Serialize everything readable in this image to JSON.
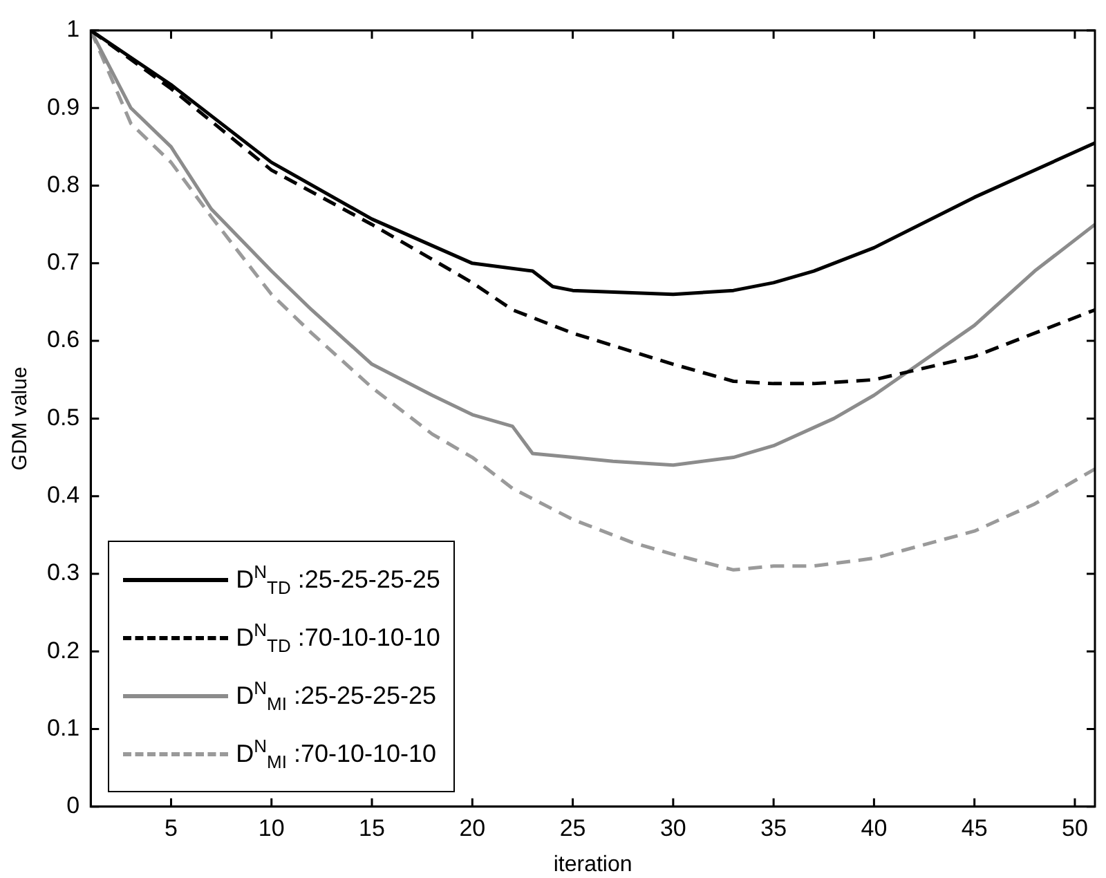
{
  "chart_data": {
    "type": "line",
    "xlabel": "iteration",
    "ylabel": "GDM value",
    "xlim": [
      1,
      51
    ],
    "ylim": [
      0,
      1
    ],
    "xticks": [
      5,
      10,
      15,
      20,
      25,
      30,
      35,
      40,
      45,
      50
    ],
    "yticks": [
      0,
      0.1,
      0.2,
      0.3,
      0.4,
      0.5,
      0.6,
      0.7,
      0.8,
      0.9,
      1
    ],
    "grid": false,
    "legend": "bottom left",
    "marker": "none",
    "series": [
      {
        "name": "D$^{N}$$_{TD}$ :25-25-25-25",
        "color": "#000000",
        "line_style": "solid",
        "x": [
          1,
          5,
          10,
          15,
          20,
          23,
          24,
          25,
          30,
          33,
          35,
          37,
          40,
          45,
          51
        ],
        "values": [
          1.0,
          0.93,
          0.83,
          0.757,
          0.7,
          0.69,
          0.67,
          0.665,
          0.66,
          0.665,
          0.675,
          0.69,
          0.72,
          0.785,
          0.855
        ]
      },
      {
        "name": "D$^{N}$$_{TD}$ :70-10-10-10",
        "color": "#000000",
        "line_style": "dashed",
        "x": [
          1,
          5,
          10,
          15,
          20,
          22,
          25,
          30,
          33,
          35,
          37,
          40,
          45,
          51
        ],
        "values": [
          1.0,
          0.925,
          0.82,
          0.75,
          0.675,
          0.64,
          0.61,
          0.57,
          0.548,
          0.545,
          0.545,
          0.55,
          0.58,
          0.64
        ]
      },
      {
        "name": "D$^{N}$$_{MI}$ :25-25-25-25",
        "color": "#8c8c8c",
        "line_style": "solid",
        "x": [
          1,
          3,
          5,
          7,
          10,
          12,
          15,
          18,
          20,
          22,
          23,
          25,
          27,
          30,
          33,
          35,
          38,
          40,
          45,
          48,
          51
        ],
        "values": [
          1.0,
          0.9,
          0.85,
          0.77,
          0.69,
          0.64,
          0.57,
          0.53,
          0.505,
          0.49,
          0.455,
          0.45,
          0.445,
          0.44,
          0.45,
          0.465,
          0.5,
          0.53,
          0.62,
          0.69,
          0.75
        ]
      },
      {
        "name": "D$^{N}$$_{MI}$ :70-10-10-10",
        "color": "#9a9a9a",
        "line_style": "dashed",
        "x": [
          1,
          3,
          5,
          7,
          10,
          12,
          15,
          18,
          20,
          22,
          25,
          28,
          30,
          33,
          35,
          37,
          40,
          45,
          48,
          51
        ],
        "values": [
          1.0,
          0.88,
          0.83,
          0.76,
          0.66,
          0.61,
          0.54,
          0.48,
          0.45,
          0.41,
          0.37,
          0.34,
          0.325,
          0.305,
          0.31,
          0.31,
          0.32,
          0.355,
          0.39,
          0.435
        ]
      }
    ]
  }
}
